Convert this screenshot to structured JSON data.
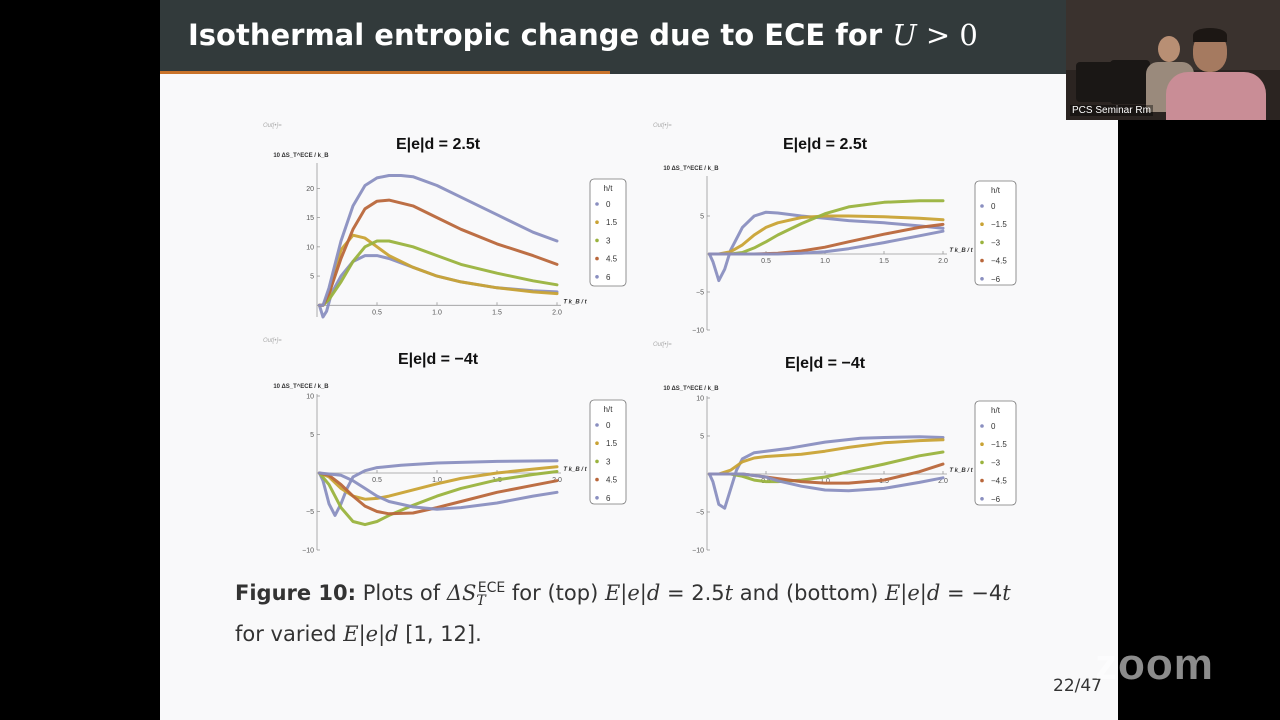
{
  "slide": {
    "title_prefix": "Isothermal entropic change due to ECE for ",
    "title_math_var": "U",
    "title_math_op": " > 0",
    "page_number": "22/47",
    "caption": {
      "label": "Figure 10:",
      "text_1": " Plots of ",
      "delta_s": "ΔS",
      "sub": "T",
      "sup": "ECE",
      "text_2": " for (top) ",
      "expr_top": "E|e|d",
      "val_top": " = 2.5",
      "t1": "t",
      "text_3": " and (bottom) ",
      "expr_bottom": "E|e|d",
      "val_bottom": " = −4",
      "t2": "t",
      "text_4": "for varied ",
      "expr_varied": "E|e|d",
      "refs": " [1, 12]."
    }
  },
  "video": {
    "participant_label": "PCS Seminar Rm",
    "app_logo": "zoom"
  },
  "chart_data": [
    {
      "type": "line",
      "out_label": "Out[•]=",
      "title": "E|e|d = 2.5t",
      "ylabel": "10 ΔS_T^ECE / k_B",
      "xlabel": "T k_B / t",
      "xlim": [
        0,
        2.0
      ],
      "ylim": [
        -2,
        24
      ],
      "xticks": [
        0.5,
        1.0,
        1.5,
        2.0
      ],
      "yticks": [
        5,
        10,
        15,
        20
      ],
      "legend_title": "h/t",
      "series": [
        {
          "name": "0",
          "color": "#8a8fc0",
          "x": [
            0.02,
            0.05,
            0.08,
            0.12,
            0.2,
            0.3,
            0.4,
            0.5,
            0.6,
            0.8,
            1.0,
            1.2,
            1.5,
            1.8,
            2.0
          ],
          "y": [
            0,
            -2,
            -1,
            2,
            5,
            7.5,
            8.5,
            8.5,
            8,
            6.5,
            5,
            4,
            3,
            2.5,
            2.3
          ]
        },
        {
          "name": "1.5",
          "color": "#c9a335",
          "x": [
            0.02,
            0.05,
            0.1,
            0.15,
            0.2,
            0.3,
            0.4,
            0.5,
            0.6,
            0.8,
            1.0,
            1.2,
            1.5,
            1.8,
            2.0
          ],
          "y": [
            0,
            0,
            1.5,
            6,
            9.5,
            12,
            11.5,
            10,
            8.5,
            6.5,
            5,
            4,
            3,
            2.3,
            2
          ]
        },
        {
          "name": "3",
          "color": "#9ab33e",
          "x": [
            0.02,
            0.05,
            0.1,
            0.2,
            0.3,
            0.4,
            0.5,
            0.6,
            0.8,
            1.0,
            1.2,
            1.5,
            1.8,
            2.0
          ],
          "y": [
            0,
            0,
            1,
            4,
            7.5,
            10,
            11,
            11,
            10,
            8.5,
            7,
            5.5,
            4.2,
            3.5
          ]
        },
        {
          "name": "4.5",
          "color": "#b9673b",
          "x": [
            0.02,
            0.05,
            0.1,
            0.2,
            0.3,
            0.4,
            0.5,
            0.6,
            0.8,
            1.0,
            1.2,
            1.5,
            1.8,
            2.0
          ],
          "y": [
            0,
            0,
            2,
            8,
            13,
            16.5,
            17.8,
            18,
            17,
            15,
            13,
            10.5,
            8.5,
            7
          ]
        },
        {
          "name": "6",
          "color": "#8a8fc0",
          "x": [
            0.02,
            0.05,
            0.1,
            0.2,
            0.3,
            0.4,
            0.5,
            0.6,
            0.7,
            0.8,
            1.0,
            1.2,
            1.5,
            1.8,
            2.0
          ],
          "y": [
            0,
            0,
            3,
            11,
            17,
            20.5,
            21.8,
            22.2,
            22.2,
            22,
            20.5,
            18.5,
            15.5,
            12.5,
            11
          ]
        }
      ]
    },
    {
      "type": "line",
      "out_label": "Out[•]=",
      "title": "E|e|d = 2.5t",
      "ylabel": "10 ΔS_T^ECE / k_B",
      "xlabel": "T k_B / t",
      "xlim": [
        0,
        2.0
      ],
      "ylim": [
        -10,
        10
      ],
      "xticks": [
        0.5,
        1.0,
        1.5,
        2.0
      ],
      "yticks": [
        -10,
        -5,
        5
      ],
      "legend_title": "h/t",
      "series": [
        {
          "name": "0",
          "color": "#8a8fc0",
          "x": [
            0.02,
            0.05,
            0.1,
            0.15,
            0.2,
            0.3,
            0.4,
            0.5,
            0.6,
            0.7,
            0.8,
            1.0,
            1.2,
            1.5,
            1.8,
            2.0
          ],
          "y": [
            0,
            -1,
            -3.5,
            -2,
            0.5,
            3.5,
            5,
            5.5,
            5.4,
            5.2,
            5,
            4.7,
            4.4,
            4.1,
            3.7,
            3.4
          ]
        },
        {
          "name": "−1.5",
          "color": "#c9a335",
          "x": [
            0.02,
            0.1,
            0.2,
            0.3,
            0.4,
            0.5,
            0.6,
            0.8,
            1.0,
            1.2,
            1.5,
            1.8,
            2.0
          ],
          "y": [
            0,
            0,
            0.3,
            1.2,
            2.5,
            3.5,
            4.1,
            4.8,
            5,
            5,
            4.9,
            4.7,
            4.5
          ]
        },
        {
          "name": "−3",
          "color": "#9ab33e",
          "x": [
            0.02,
            0.2,
            0.3,
            0.4,
            0.5,
            0.6,
            0.8,
            1.0,
            1.2,
            1.5,
            1.8,
            2.0
          ],
          "y": [
            0,
            0,
            0.2,
            0.8,
            1.6,
            2.5,
            4,
            5.3,
            6.2,
            6.8,
            7,
            7
          ]
        },
        {
          "name": "−4.5",
          "color": "#b9673b",
          "x": [
            0.02,
            0.4,
            0.6,
            0.8,
            1.0,
            1.2,
            1.5,
            1.8,
            2.0
          ],
          "y": [
            0,
            0,
            0.1,
            0.4,
            0.9,
            1.6,
            2.6,
            3.5,
            3.9
          ]
        },
        {
          "name": "−6",
          "color": "#8a8fc0",
          "x": [
            0.02,
            0.6,
            0.8,
            1.0,
            1.2,
            1.5,
            1.8,
            2.0
          ],
          "y": [
            0,
            0,
            0.1,
            0.3,
            0.7,
            1.5,
            2.4,
            3
          ]
        }
      ]
    },
    {
      "type": "line",
      "out_label": "Out[•]=",
      "title": "E|e|d = −4t",
      "ylabel": "10 ΔS_T^ECE / k_B",
      "xlabel": "T k_B / t",
      "xlim": [
        0,
        2.0
      ],
      "ylim": [
        -10,
        10
      ],
      "xticks": [
        0.5,
        1.0,
        1.5,
        2.0
      ],
      "yticks": [
        -10,
        -5,
        5,
        10
      ],
      "legend_title": "h/t",
      "series": [
        {
          "name": "0",
          "color": "#8a8fc0",
          "x": [
            0.02,
            0.05,
            0.1,
            0.15,
            0.2,
            0.25,
            0.3,
            0.4,
            0.5,
            0.7,
            1.0,
            1.5,
            2.0
          ],
          "y": [
            0,
            -1,
            -4,
            -5.5,
            -4,
            -2,
            -0.5,
            0.3,
            0.7,
            1,
            1.3,
            1.5,
            1.6
          ]
        },
        {
          "name": "1.5",
          "color": "#c9a335",
          "x": [
            0.02,
            0.1,
            0.2,
            0.3,
            0.4,
            0.5,
            0.6,
            0.8,
            1.0,
            1.2,
            1.5,
            1.8,
            2.0
          ],
          "y": [
            0,
            -0.5,
            -2,
            -3,
            -3.4,
            -3.3,
            -3,
            -2.2,
            -1.4,
            -0.7,
            0,
            0.5,
            0.8
          ]
        },
        {
          "name": "3",
          "color": "#9ab33e",
          "x": [
            0.02,
            0.1,
            0.2,
            0.3,
            0.4,
            0.5,
            0.6,
            0.8,
            1.0,
            1.2,
            1.5,
            1.8,
            2.0
          ],
          "y": [
            0,
            -1.5,
            -4.5,
            -6.3,
            -6.7,
            -6.3,
            -5.5,
            -4.2,
            -3,
            -2,
            -0.9,
            -0.2,
            0.2
          ]
        },
        {
          "name": "4.5",
          "color": "#b9673b",
          "x": [
            0.02,
            0.1,
            0.2,
            0.3,
            0.4,
            0.5,
            0.6,
            0.8,
            1.0,
            1.2,
            1.5,
            1.8,
            2.0
          ],
          "y": [
            0,
            -0.3,
            -1.5,
            -3,
            -4.3,
            -5,
            -5.3,
            -5.2,
            -4.5,
            -3.7,
            -2.5,
            -1.6,
            -1
          ]
        },
        {
          "name": "6",
          "color": "#8a8fc0",
          "x": [
            0.02,
            0.2,
            0.3,
            0.4,
            0.5,
            0.6,
            0.8,
            1.0,
            1.2,
            1.5,
            1.8,
            2.0
          ],
          "y": [
            0,
            -0.3,
            -1,
            -2,
            -3,
            -3.7,
            -4.4,
            -4.7,
            -4.5,
            -3.9,
            -3,
            -2.5
          ]
        }
      ]
    },
    {
      "type": "line",
      "out_label": "Out[•]=",
      "title": "E|e|d = −4t",
      "ylabel": "10 ΔS_T^ECE / k_B",
      "xlabel": "T k_B / t",
      "xlim": [
        0,
        2.0
      ],
      "ylim": [
        -10,
        10
      ],
      "xticks": [
        0.5,
        1.0,
        1.5,
        2.0
      ],
      "yticks": [
        -10,
        -5,
        5,
        10
      ],
      "legend_title": "h/t",
      "series": [
        {
          "name": "0",
          "color": "#8a8fc0",
          "x": [
            0.02,
            0.05,
            0.1,
            0.15,
            0.2,
            0.25,
            0.3,
            0.4,
            0.5,
            0.7,
            1.0,
            1.3,
            1.5,
            1.8,
            2.0
          ],
          "y": [
            0,
            -1,
            -4,
            -4.5,
            -2,
            0.5,
            2,
            2.8,
            3,
            3.4,
            4.2,
            4.7,
            4.8,
            4.9,
            4.8
          ]
        },
        {
          "name": "−1.5",
          "color": "#c9a335",
          "x": [
            0.02,
            0.1,
            0.2,
            0.3,
            0.4,
            0.5,
            0.6,
            0.8,
            1.0,
            1.2,
            1.5,
            1.8,
            2.0
          ],
          "y": [
            0,
            0,
            0.5,
            1.6,
            2.1,
            2.3,
            2.4,
            2.6,
            3,
            3.5,
            4.1,
            4.4,
            4.5
          ]
        },
        {
          "name": "−3",
          "color": "#9ab33e",
          "x": [
            0.02,
            0.2,
            0.3,
            0.4,
            0.5,
            0.6,
            0.8,
            1.0,
            1.2,
            1.5,
            1.8,
            2.0
          ],
          "y": [
            0,
            0,
            -0.3,
            -0.8,
            -1,
            -1,
            -0.8,
            -0.4,
            0.3,
            1.3,
            2.4,
            2.9
          ]
        },
        {
          "name": "−4.5",
          "color": "#b9673b",
          "x": [
            0.02,
            0.3,
            0.4,
            0.5,
            0.6,
            0.8,
            1.0,
            1.2,
            1.5,
            1.8,
            2.0
          ],
          "y": [
            0,
            0,
            -0.2,
            -0.4,
            -0.6,
            -1,
            -1.2,
            -1.2,
            -0.8,
            0.3,
            1.3
          ]
        },
        {
          "name": "−6",
          "color": "#8a8fc0",
          "x": [
            0.02,
            0.3,
            0.4,
            0.5,
            0.6,
            0.8,
            1.0,
            1.2,
            1.5,
            1.8,
            2.0
          ],
          "y": [
            0,
            0,
            -0.2,
            -0.4,
            -0.9,
            -1.6,
            -2.1,
            -2.2,
            -1.9,
            -1.1,
            -0.5
          ]
        }
      ]
    }
  ]
}
